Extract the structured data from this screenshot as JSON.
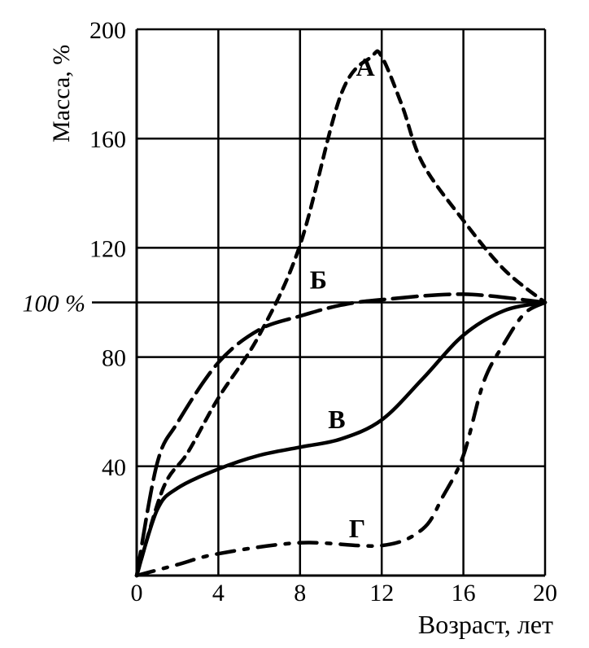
{
  "chart_data": {
    "type": "line",
    "title": "",
    "xlabel": "Возраст, лет",
    "ylabel": "Масса, %",
    "xlim": [
      0,
      20
    ],
    "ylim": [
      0,
      200
    ],
    "grid": true,
    "x_ticks": [
      "0",
      "4",
      "8",
      "12",
      "16",
      "20"
    ],
    "x_tick_values": [
      0,
      4,
      8,
      12,
      16,
      20
    ],
    "y_ticks": [
      "40",
      "80",
      "120",
      "160",
      "200"
    ],
    "y_tick_values": [
      40,
      80,
      120,
      160,
      200
    ],
    "reference_line": {
      "label": "100 %",
      "value": 100
    },
    "series": [
      {
        "name": "А",
        "style": "short-dash",
        "x": [
          0,
          1.3,
          2.5,
          4,
          6,
          8,
          10,
          11.5,
          12,
          13,
          14,
          16,
          18,
          20
        ],
        "y": [
          0,
          32,
          45,
          65,
          88,
          121,
          176,
          190,
          190,
          172,
          151,
          130,
          112,
          100
        ],
        "label_at": [
          11.2,
          183
        ]
      },
      {
        "name": "Б",
        "style": "long-dash",
        "x": [
          0,
          1,
          2,
          4,
          6,
          8,
          10,
          12,
          16,
          20
        ],
        "y": [
          0,
          41,
          56,
          78,
          90,
          95,
          99,
          101,
          103,
          100
        ],
        "label_at": [
          8.9,
          105
        ]
      },
      {
        "name": "В",
        "style": "solid",
        "x": [
          0,
          1,
          2,
          4,
          6,
          8,
          10,
          12,
          14,
          16,
          18,
          20
        ],
        "y": [
          0,
          24,
          32,
          39,
          44,
          47,
          50,
          57,
          72,
          88,
          97,
          100
        ],
        "label_at": [
          9.8,
          54
        ]
      },
      {
        "name": "Г",
        "style": "dash-dot",
        "x": [
          0,
          2,
          4,
          8,
          12,
          14,
          15,
          16,
          17,
          18,
          19,
          20
        ],
        "y": [
          0,
          4,
          8,
          12,
          11,
          17,
          29,
          44,
          71,
          85,
          96,
          100
        ],
        "label_at": [
          10.8,
          14
        ]
      }
    ]
  }
}
